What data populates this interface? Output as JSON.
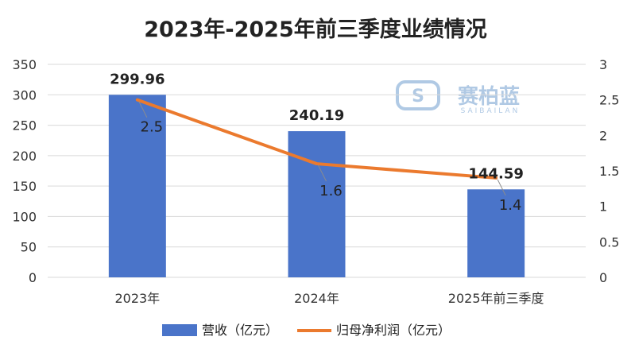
{
  "chart_data": {
    "type": "bar+line",
    "title": "2023年-2025年前三季度业绩情况",
    "categories": [
      "2023年",
      "2024年",
      "2025年前三季度"
    ],
    "series": [
      {
        "name": "营收（亿元）",
        "type": "bar",
        "axis": "left",
        "color": "#4A74C9",
        "values": [
          299.96,
          240.19,
          144.59
        ],
        "labels": [
          "299.96",
          "240.19",
          "144.59"
        ]
      },
      {
        "name": "归母净利润（亿元）",
        "type": "line",
        "axis": "right",
        "color": "#EB7A2E",
        "values": [
          2.5,
          1.6,
          1.4
        ],
        "labels": [
          "2.5",
          "1.6",
          "1.4"
        ]
      }
    ],
    "y_left": {
      "min": 0,
      "max": 350,
      "ticks": [
        "0",
        "50",
        "100",
        "150",
        "200",
        "250",
        "300",
        "350"
      ]
    },
    "y_right": {
      "min": 0,
      "max": 3,
      "ticks": [
        "0",
        "0.5",
        "1",
        "1.5",
        "2",
        "2.5",
        "3"
      ]
    },
    "grid": true,
    "legend_position": "bottom"
  },
  "watermark": {
    "name": "赛柏蓝",
    "sub": "SAIBAILAN",
    "color": "#8FB3DA"
  }
}
